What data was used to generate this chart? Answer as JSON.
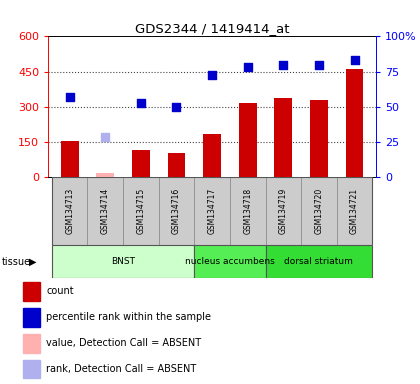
{
  "title": "GDS2344 / 1419414_at",
  "samples": [
    "GSM134713",
    "GSM134714",
    "GSM134715",
    "GSM134716",
    "GSM134717",
    "GSM134718",
    "GSM134719",
    "GSM134720",
    "GSM134721"
  ],
  "counts": [
    155,
    20,
    115,
    105,
    185,
    315,
    340,
    330,
    460
  ],
  "ranks": [
    57,
    29,
    53,
    50,
    73,
    78,
    80,
    80,
    83
  ],
  "absent": [
    false,
    true,
    false,
    false,
    false,
    false,
    false,
    false,
    false
  ],
  "bar_color_present": "#cc0000",
  "bar_color_absent": "#ffb0b0",
  "dot_color_present": "#0000cc",
  "dot_color_absent": "#b0b0ee",
  "ylim_left": [
    0,
    600
  ],
  "ylim_right": [
    0,
    100
  ],
  "yticks_left": [
    0,
    150,
    300,
    450,
    600
  ],
  "ytick_labels_left": [
    "0",
    "150",
    "300",
    "450",
    "600"
  ],
  "yticks_right": [
    0,
    25,
    50,
    75,
    100
  ],
  "ytick_labels_right": [
    "0",
    "25",
    "50",
    "75",
    "100%"
  ],
  "tissue_spans": [
    {
      "label": "BNST",
      "start": 0,
      "end": 3,
      "color": "#ccffcc"
    },
    {
      "label": "nucleus accumbens",
      "start": 4,
      "end": 5,
      "color": "#55ee55"
    },
    {
      "label": "dorsal striatum",
      "start": 6,
      "end": 8,
      "color": "#33dd33"
    }
  ],
  "legend_items": [
    {
      "label": "count",
      "color": "#cc0000"
    },
    {
      "label": "percentile rank within the sample",
      "color": "#0000cc"
    },
    {
      "label": "value, Detection Call = ABSENT",
      "color": "#ffb0b0"
    },
    {
      "label": "rank, Detection Call = ABSENT",
      "color": "#b0b0ee"
    }
  ],
  "bar_width": 0.5,
  "sample_box_color": "#cccccc",
  "grid_color": "#555555",
  "bg_color": "#ffffff"
}
